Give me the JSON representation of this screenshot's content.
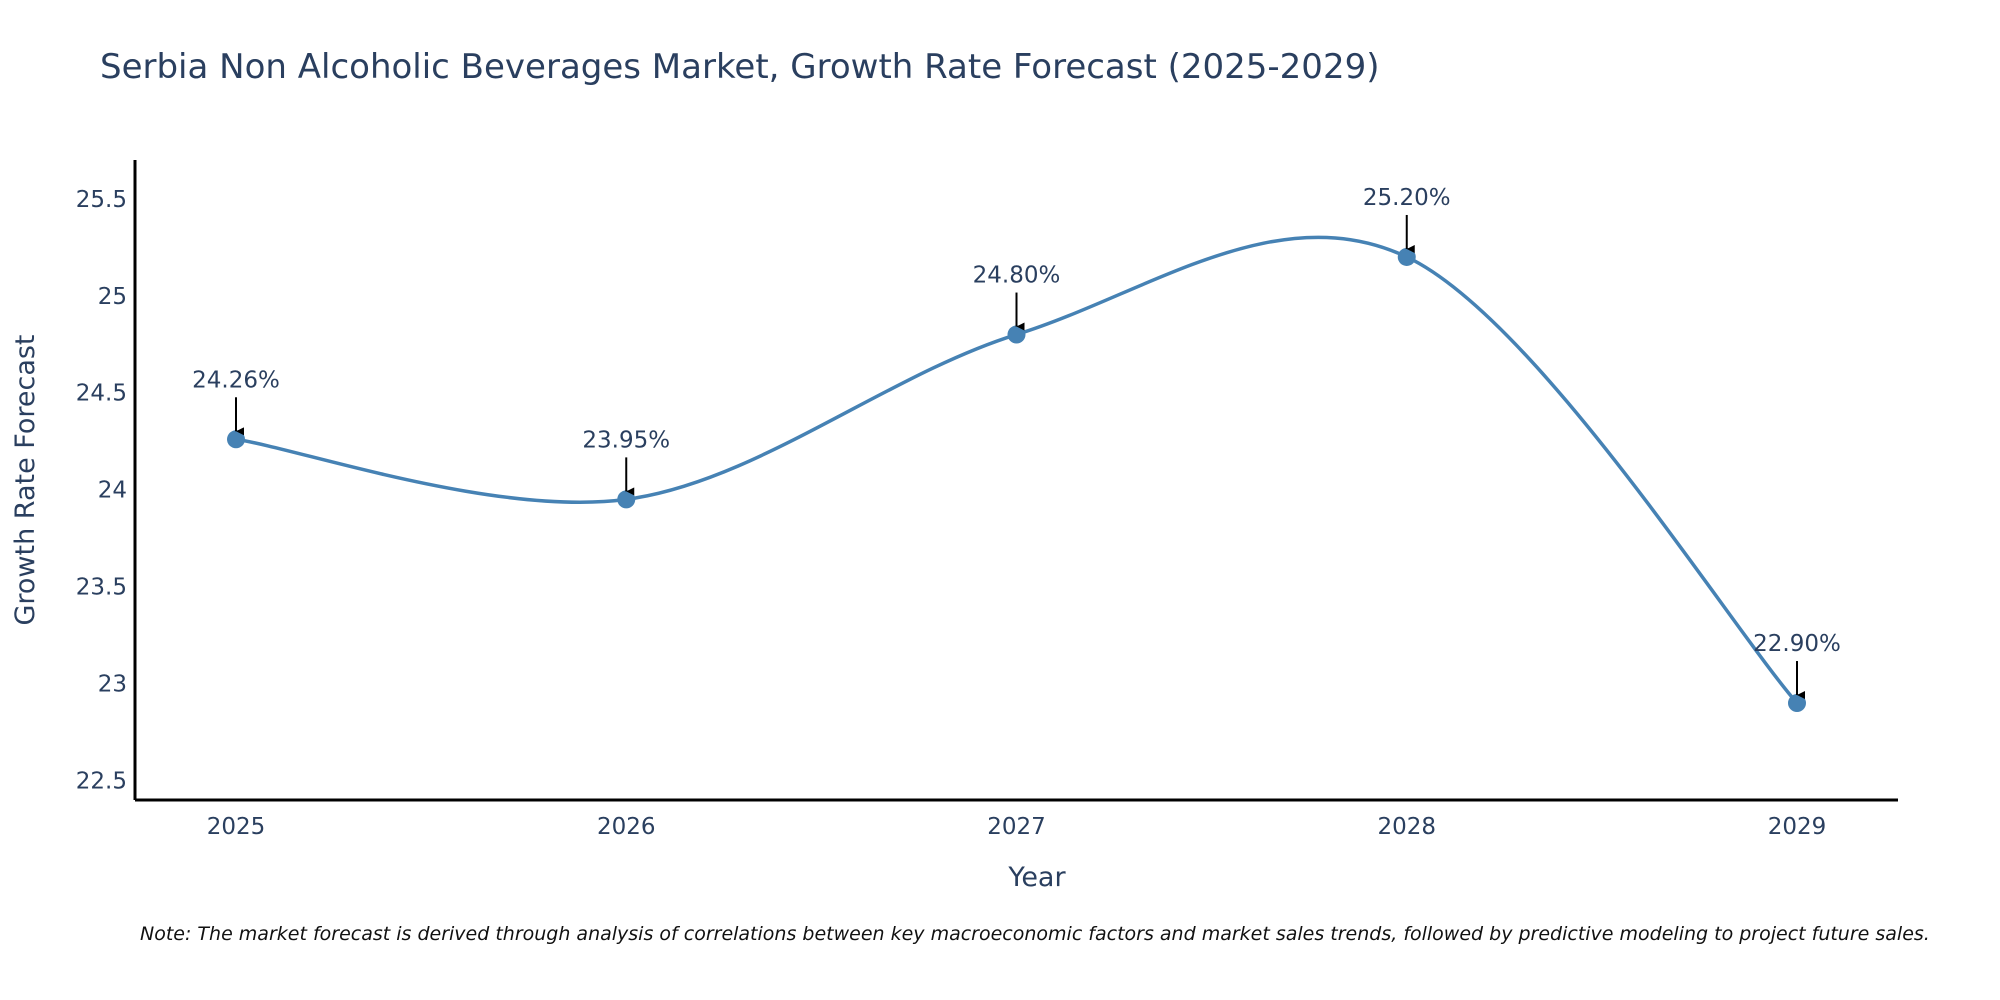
{
  "chart_data": {
    "type": "line",
    "title": "Serbia Non Alcoholic Beverages Market, Growth Rate Forecast (2025-2029)",
    "xlabel": "Year",
    "ylabel": "Growth Rate Forecast",
    "categories": [
      "2025",
      "2026",
      "2027",
      "2028",
      "2029"
    ],
    "series": [
      {
        "name": "Growth Rate Forecast",
        "values": [
          24.26,
          23.95,
          24.8,
          25.2,
          22.9
        ],
        "labels": [
          "24.26%",
          "23.95%",
          "24.80%",
          "25.20%",
          "22.90%"
        ]
      }
    ],
    "ylim": [
      22.4,
      25.7
    ],
    "yticks": [
      "22.5",
      "23",
      "23.5",
      "24",
      "24.5",
      "25",
      "25.5"
    ],
    "grid": false,
    "line_shape": "spline",
    "colors": {
      "line": "#4682b4",
      "marker": "#4682b4",
      "text": "#2a3f5f",
      "axis": "#000000",
      "arrow": "#000000"
    },
    "note": "Note: The market forecast is derived through analysis of correlations between key macroeconomic factors and market sales trends, followed by predictive modeling to project future sales."
  }
}
